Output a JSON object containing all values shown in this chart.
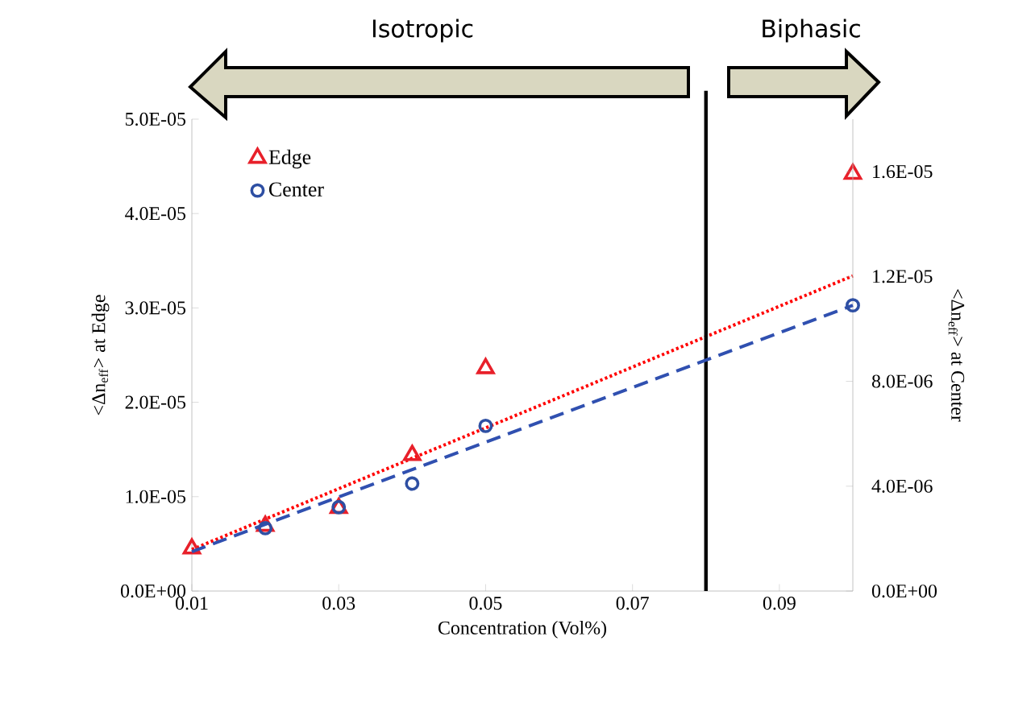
{
  "chart_data": {
    "type": "scatter",
    "xlabel": "Concentration (Vol%)",
    "ylabel": "<Δn$_{eff}$> at Edge",
    "y2label": "<Δn$_{eff}$> at Center",
    "annotations": [
      "Isotropic",
      "Biphasic"
    ],
    "series": [
      {
        "name": "Edge",
        "color": "#e8202a",
        "marker": "triangle",
        "x": [
          0.01,
          0.02,
          0.03,
          0.04,
          0.05,
          0.1
        ],
        "values": [
          4.5e-06,
          6.9e-06,
          8.8e-06,
          1.44e-05,
          2.36e-05,
          4.42e-05
        ]
      },
      {
        "name": "Center",
        "color": "#2e4fa3",
        "marker": "circle",
        "axis": "y2",
        "x": [
          0.02,
          0.03,
          0.04,
          0.05,
          0.1
        ],
        "values": [
          2.4e-06,
          3.2e-06,
          4.1e-06,
          6.3e-06,
          1.09e-05
        ]
      },
      {
        "type": "line",
        "color": "#ff0000",
        "marker": "none",
        "line_style": "dotted",
        "x": [
          0.01,
          0.1
        ],
        "values": [
          4.4e-06,
          3.34e-05
        ]
      },
      {
        "type": "line",
        "color": "#3050b0",
        "marker": "none",
        "line_style": "dashed",
        "axis": "y2",
        "x": [
          0.01,
          0.1
        ],
        "values": [
          1.5e-06,
          1.09e-05
        ]
      }
    ],
    "xlim": [
      0.01,
      0.1
    ],
    "xticks": [
      0.01,
      0.03,
      0.05,
      0.07,
      0.09
    ],
    "ylim": [
      0,
      5e-05
    ],
    "yticks": [
      {
        "value": 0,
        "label": "0.0E+00"
      },
      {
        "value": 1e-05,
        "label": "1.0E-05"
      },
      {
        "value": 2e-05,
        "label": "2.0E-05"
      },
      {
        "value": 3e-05,
        "label": "3.0E-05"
      },
      {
        "value": 4e-05,
        "label": "4.0E-05"
      },
      {
        "value": 5e-05,
        "label": "5.0E-05"
      }
    ],
    "y2lim": [
      0,
      1.8e-05
    ],
    "y2ticks": [
      {
        "value": 0,
        "label": "0.0E+00"
      },
      {
        "value": 4e-06,
        "label": "4.0E-06"
      },
      {
        "value": 8e-06,
        "label": "8.0E-06"
      },
      {
        "value": 1.2e-05,
        "label": "1.2E-05"
      },
      {
        "value": 1.6e-05,
        "label": "1.6E-05"
      }
    ],
    "ref_lines": [
      {
        "axis": "x",
        "value": 0.08,
        "color": "#000000"
      }
    ],
    "legend": "top left"
  }
}
